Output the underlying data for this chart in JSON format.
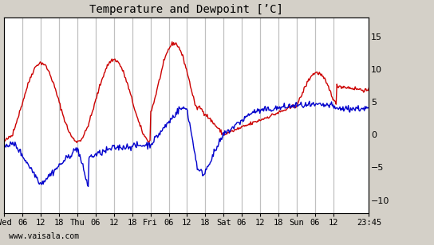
{
  "title": "Temperature and Dewpoint [’C]",
  "ylabel_right": "",
  "ylim": [
    -12,
    18
  ],
  "yticks": [
    -10,
    -5,
    0,
    5,
    10,
    15
  ],
  "x_tick_labels": [
    "Wed",
    "06",
    "12",
    "18",
    "Thu",
    "06",
    "12",
    "18",
    "Fri",
    "06",
    "12",
    "18",
    "Sat",
    "06",
    "12",
    "18",
    "Sun",
    "06",
    "12",
    "23:45"
  ],
  "bg_color": "#d4d0c8",
  "plot_bg_color": "#ffffff",
  "grid_color": "#c0c0c0",
  "temp_color": "#cc0000",
  "dewpoint_color": "#0000cc",
  "line_width": 1.0,
  "watermark": "www.vaisala.com",
  "n_points": 480
}
